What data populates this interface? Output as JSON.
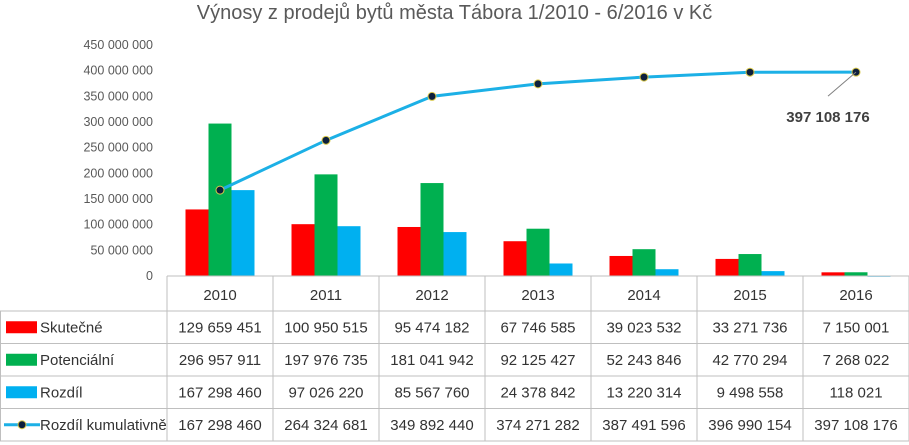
{
  "chart_data": {
    "type": "bar",
    "title": "Výnosy z prodejů bytů města Tábora 1/2010 - 6/2016 v Kč",
    "categories": [
      "2010",
      "2011",
      "2012",
      "2013",
      "2014",
      "2015",
      "2016"
    ],
    "ylim": [
      0,
      450000000
    ],
    "yticks": [
      "0",
      "50 000 000",
      "100 000 000",
      "150 000 000",
      "200 000 000",
      "250 000 000",
      "300 000 000",
      "350 000 000",
      "400 000 000",
      "450 000 000"
    ],
    "grid": false,
    "legend": "data-table",
    "series": [
      {
        "name": "Skutečné",
        "type": "bar",
        "color": "#ff0000",
        "values": [
          129659451,
          100950515,
          95474182,
          67746585,
          39023532,
          33271736,
          7150001
        ],
        "labels": [
          "129 659 451",
          "100 950 515",
          "95 474 182",
          "67 746 585",
          "39 023 532",
          "33 271 736",
          "7 150 001"
        ]
      },
      {
        "name": "Potenciální",
        "type": "bar",
        "color": "#00b050",
        "values": [
          296957911,
          197976735,
          181041942,
          92125427,
          52243846,
          42770294,
          7268022
        ],
        "labels": [
          "296 957 911",
          "197 976 735",
          "181 041 942",
          "92 125 427",
          "52 243 846",
          "42 770 294",
          "7 268 022"
        ]
      },
      {
        "name": "Rozdíl",
        "type": "bar",
        "color": "#00b0f0",
        "values": [
          167298460,
          97026220,
          85567760,
          24378842,
          13220314,
          9498558,
          118021
        ],
        "labels": [
          "167 298 460",
          "97 026 220",
          "85 567 760",
          "24 378 842",
          "13 220 314",
          "9 498 558",
          "118 021"
        ]
      },
      {
        "name": "Rozdíl kumulativně",
        "type": "line",
        "color": "#1cb0e6",
        "marker_color": "#0d1f3c",
        "values": [
          167298460,
          264324681,
          349892440,
          374271282,
          387491596,
          396990154,
          397108176
        ],
        "labels": [
          "167 298 460",
          "264 324 681",
          "349 892 440",
          "374 271 282",
          "387 491 596",
          "396 990 154",
          "397 108 176"
        ]
      }
    ],
    "annotation": "397 108 176"
  }
}
